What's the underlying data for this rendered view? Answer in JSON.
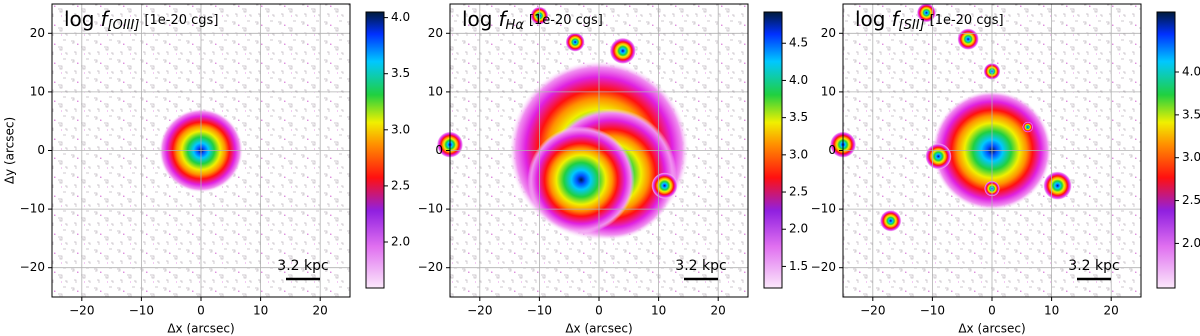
{
  "chart_data": [
    {
      "type": "image",
      "title_prefix": "log",
      "title_symbol": "f",
      "title_subscript": "[OIII]",
      "title_unit": "[1e-20 cgs]",
      "xlabel": "Δx (arcsec)",
      "ylabel": "Δy (arcsec)",
      "xlim": [
        -25,
        25
      ],
      "ylim": [
        -25,
        25
      ],
      "xticks": [
        {
          "value": -20,
          "label": "−20"
        },
        {
          "value": -10,
          "label": "−10"
        },
        0,
        10,
        20
      ],
      "yticks": [
        {
          "value": -20,
          "label": "−20"
        },
        {
          "value": -10,
          "label": "−10"
        },
        0,
        10,
        20
      ],
      "grid": true,
      "scalebar_label": "3.2 kpc",
      "colorbar_lim": [
        1.59,
        4.05
      ],
      "colorbar_ticks": [
        {
          "value": 2,
          "label": "2.0"
        },
        {
          "value": 2.5,
          "label": "2.5"
        },
        {
          "value": 3,
          "label": "3.0"
        },
        {
          "value": 3.5,
          "label": "3.5"
        },
        {
          "value": 4,
          "label": "4.0"
        }
      ]
    },
    {
      "type": "image",
      "title_prefix": "log",
      "title_symbol": "f",
      "title_subscript": "Hα",
      "title_unit": "[1e-20 cgs]",
      "xlabel": "Δx (arcsec)",
      "xlim": [
        -25,
        25
      ],
      "ylim": [
        -25,
        25
      ],
      "xticks": [
        {
          "value": -20,
          "label": "−20"
        },
        {
          "value": -10,
          "label": "−10"
        },
        0,
        10,
        20
      ],
      "yticks": [
        {
          "value": -20,
          "label": "−20"
        },
        {
          "value": -10,
          "label": "−10"
        },
        0,
        10,
        20
      ],
      "grid": true,
      "scalebar_label": "3.2 kpc",
      "colorbar_lim": [
        1.21,
        4.92
      ],
      "colorbar_ticks": [
        {
          "value": 1.5,
          "label": "1.5"
        },
        {
          "value": 2,
          "label": "2.0"
        },
        {
          "value": 2.5,
          "label": "2.5"
        },
        {
          "value": 3,
          "label": "3.0"
        },
        {
          "value": 3.5,
          "label": "3.5"
        },
        {
          "value": 4,
          "label": "4.0"
        },
        {
          "value": 4.5,
          "label": "4.5"
        }
      ]
    },
    {
      "type": "image",
      "title_prefix": "log",
      "title_symbol": "f",
      "title_subscript": "[SII]",
      "title_unit": "[1e-20 cgs]",
      "xlabel": "Δx (arcsec)",
      "xlim": [
        -25,
        25
      ],
      "ylim": [
        -25,
        25
      ],
      "xticks": [
        {
          "value": -20,
          "label": "−20"
        },
        {
          "value": -10,
          "label": "−10"
        },
        0,
        10,
        20
      ],
      "yticks": [
        {
          "value": -20,
          "label": "−20"
        },
        {
          "value": -10,
          "label": "−10"
        },
        0,
        10,
        20
      ],
      "grid": true,
      "scalebar_label": "3.2 kpc",
      "colorbar_lim": [
        1.48,
        4.7
      ],
      "colorbar_ticks": [
        {
          "value": 2,
          "label": "2.0"
        },
        {
          "value": 2.5,
          "label": "2.5"
        },
        {
          "value": 3,
          "label": "3.0"
        },
        {
          "value": 3.5,
          "label": "3.5"
        },
        {
          "value": 4,
          "label": "4.0"
        }
      ]
    }
  ]
}
